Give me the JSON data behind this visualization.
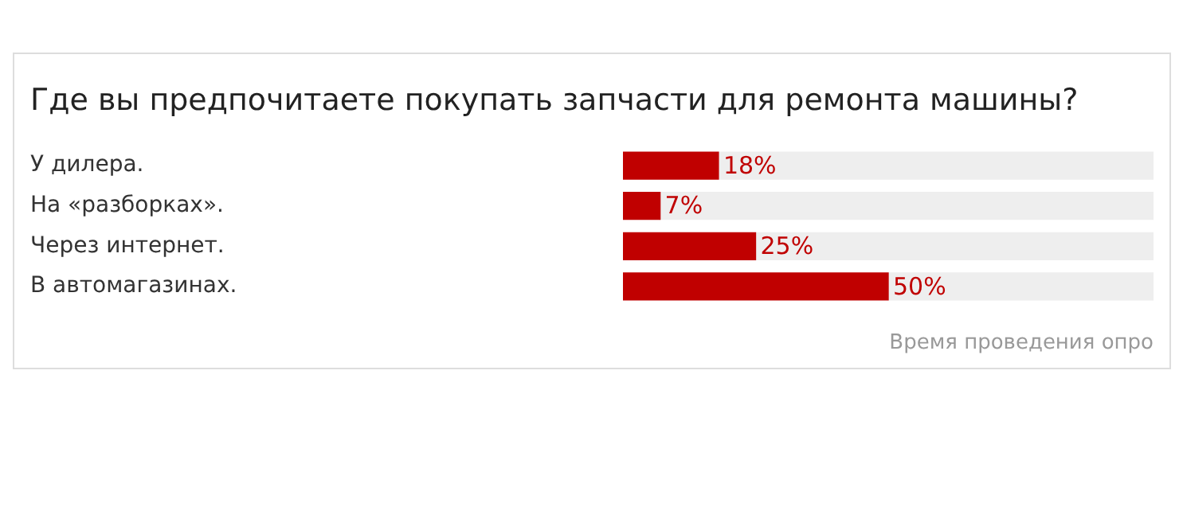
{
  "chart_data": {
    "type": "bar",
    "orientation": "horizontal",
    "stacked": true,
    "title": "Где вы предпочитаете покупать запчасти для ремонта машины?",
    "categories": [
      "У дилера.",
      "На «разборках».",
      "Через интернет.",
      "В автомагазинах."
    ],
    "series": [
      {
        "color": "#c00000",
        "values": [
          18,
          7,
          25,
          50
        ],
        "value_labels": [
          "18%",
          "7%",
          "25%",
          "50%"
        ]
      },
      {
        "color": "#eeeeee",
        "values": [
          82,
          93,
          75,
          50
        ]
      }
    ],
    "xlim": [
      0,
      100
    ],
    "tick_labels": "y",
    "grid": false,
    "annotations": [
      "Время проведения опро"
    ]
  }
}
